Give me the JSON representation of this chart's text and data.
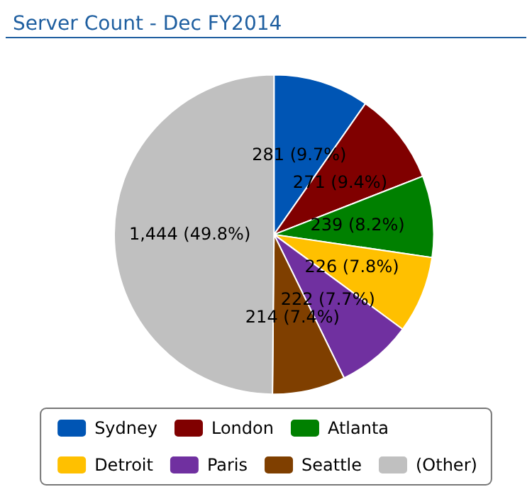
{
  "chart_data": {
    "type": "pie",
    "title": "Server Count - Dec FY2014",
    "categories": [
      "Sydney",
      "London",
      "Atlanta",
      "Detroit",
      "Paris",
      "Seattle",
      "(Other)"
    ],
    "values": [
      281,
      271,
      239,
      226,
      222,
      214,
      1444
    ],
    "colors": [
      "#0055b4",
      "#800000",
      "#008000",
      "#ffc000",
      "#7030a0",
      "#7f3f00",
      "#c0c0c0"
    ],
    "value_labels": [
      "281 (9.7%)",
      "271 (9.4%)",
      "239 (8.2%)",
      "226 (7.8%)",
      "222 (7.7%)",
      "214 (7.4%)",
      "1,444 (49.8%)"
    ],
    "legend": "bottom"
  }
}
